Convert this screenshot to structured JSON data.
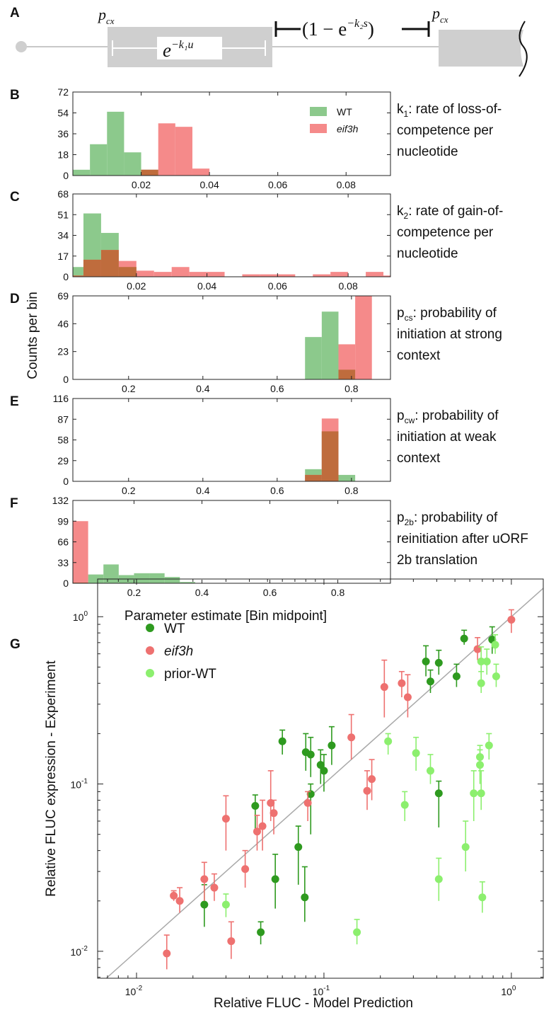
{
  "figure": {
    "panel_labels": [
      "A",
      "B",
      "C",
      "D",
      "E",
      "F",
      "G"
    ],
    "hist_ylabel": "Counts per bin",
    "hist_xlabel": "Parameter estimate [Bin midpoint]",
    "legend": {
      "wt": "WT",
      "eif3h": "eif3h"
    }
  },
  "schematic": {
    "pcx_left": "p",
    "pcx_left_sub": "cx",
    "pcx_right": "p",
    "pcx_right_sub": "cx",
    "decay_expr": "e",
    "decay_sup": "−k₁u",
    "gain_expr_prefix": "(1 − e",
    "gain_sup": "−k₂s",
    "gain_expr_suffix": ")"
  },
  "colors": {
    "wt": "#8cc98c",
    "eif3h": "#f58a8a",
    "overlap": "#bf6c3d",
    "g_wt": "#2e9a1f",
    "g_eif3h": "#ee7170",
    "g_prior": "#8cef6e",
    "box_gray": "#cfcfcf"
  },
  "chart_data": [
    {
      "panel": "B",
      "type": "bar",
      "description": [
        {
          "t": "k",
          "sub": "1",
          "rest": ": rate of loss-of-"
        },
        {
          "t": "competence per"
        },
        {
          "t": "nucleotide"
        }
      ],
      "xlim": [
        0.0,
        0.093
      ],
      "ylim": [
        0,
        72
      ],
      "xticks": [
        0.02,
        0.04,
        0.06,
        0.08
      ],
      "xtick_labels": [
        "0.02",
        "0.04",
        "0.06",
        "0.08"
      ],
      "yticks": [
        0,
        18,
        36,
        54,
        72
      ],
      "bin_width": 0.005,
      "series": [
        {
          "name": "WT",
          "bins": [
            [
              0.0025,
              5
            ],
            [
              0.0075,
              27
            ],
            [
              0.0125,
              55
            ],
            [
              0.0175,
              20
            ],
            [
              0.0225,
              5
            ]
          ]
        },
        {
          "name": "eif3h",
          "bins": [
            [
              0.0225,
              5
            ],
            [
              0.0275,
              45
            ],
            [
              0.0325,
              42
            ],
            [
              0.0375,
              6
            ]
          ]
        }
      ],
      "overlap_bins": [
        [
          0.0225,
          5
        ]
      ]
    },
    {
      "panel": "C",
      "type": "bar",
      "description": [
        {
          "t": "k",
          "sub": "2",
          "rest": ": rate of gain-of-"
        },
        {
          "t": "competence per"
        },
        {
          "t": "nucleotide"
        }
      ],
      "xlim": [
        0.002,
        0.092
      ],
      "ylim": [
        0,
        68
      ],
      "xticks": [
        0.02,
        0.04,
        0.06,
        0.08
      ],
      "xtick_labels": [
        "0.02",
        "0.04",
        "0.06",
        "0.08"
      ],
      "yticks": [
        0,
        17,
        34,
        51,
        68
      ],
      "bin_width": 0.005,
      "series": [
        {
          "name": "WT",
          "bins": [
            [
              0.0025,
              8
            ],
            [
              0.0075,
              52
            ],
            [
              0.0125,
              36
            ],
            [
              0.0175,
              8
            ]
          ]
        },
        {
          "name": "eif3h",
          "bins": [
            [
              0.0025,
              1
            ],
            [
              0.0075,
              14
            ],
            [
              0.0125,
              22
            ],
            [
              0.0175,
              13
            ],
            [
              0.0225,
              5
            ],
            [
              0.0275,
              4
            ],
            [
              0.0325,
              8
            ],
            [
              0.0375,
              4
            ],
            [
              0.0425,
              4
            ],
            [
              0.0525,
              2
            ],
            [
              0.0575,
              2
            ],
            [
              0.0625,
              2
            ],
            [
              0.0725,
              2
            ],
            [
              0.0775,
              4
            ],
            [
              0.0875,
              4
            ],
            [
              0.0925,
              1
            ]
          ]
        }
      ],
      "overlap_bins": [
        [
          0.0025,
          1
        ],
        [
          0.0075,
          14
        ],
        [
          0.0125,
          22
        ],
        [
          0.0175,
          8
        ]
      ]
    },
    {
      "panel": "D",
      "type": "bar",
      "description": [
        {
          "t": "p",
          "sub": "cs",
          "rest": ": probability of"
        },
        {
          "t": "initiation at strong"
        },
        {
          "t": "context"
        }
      ],
      "xlim": [
        0.05,
        0.905
      ],
      "ylim": [
        0,
        69
      ],
      "xticks": [
        0.2,
        0.4,
        0.6,
        0.8
      ],
      "xtick_labels": [
        "0.2",
        "0.4",
        "0.6",
        "0.8"
      ],
      "yticks": [
        0,
        23,
        46,
        69
      ],
      "bin_width": 0.045,
      "series": [
        {
          "name": "WT",
          "bins": [
            [
              0.6975,
              35
            ],
            [
              0.7425,
              56
            ],
            [
              0.7875,
              8
            ]
          ]
        },
        {
          "name": "eif3h",
          "bins": [
            [
              0.7875,
              29
            ],
            [
              0.8325,
              69
            ]
          ]
        }
      ],
      "overlap_bins": [
        [
          0.7875,
          8
        ]
      ]
    },
    {
      "panel": "E",
      "type": "bar",
      "description": [
        {
          "t": "p",
          "sub": "cw",
          "rest": ": probability of"
        },
        {
          "t": "initiation at weak"
        },
        {
          "t": "context"
        }
      ],
      "xlim": [
        0.05,
        0.905
      ],
      "ylim": [
        0,
        116
      ],
      "xticks": [
        0.2,
        0.4,
        0.6,
        0.8
      ],
      "xtick_labels": [
        "0.2",
        "0.4",
        "0.6",
        "0.8"
      ],
      "yticks": [
        0,
        29,
        58,
        87,
        116
      ],
      "bin_width": 0.045,
      "series": [
        {
          "name": "WT",
          "bins": [
            [
              0.6975,
              17
            ],
            [
              0.7425,
              70
            ],
            [
              0.7875,
              9
            ]
          ]
        },
        {
          "name": "eif3h",
          "bins": [
            [
              0.6975,
              9
            ],
            [
              0.7425,
              88
            ]
          ]
        }
      ],
      "overlap_bins": [
        [
          0.6975,
          9
        ],
        [
          0.7425,
          70
        ]
      ]
    },
    {
      "panel": "F",
      "type": "bar",
      "description": [
        {
          "t": "p",
          "sub": "2b",
          "rest": ": probability of"
        },
        {
          "t": "reinitiation after uORF"
        },
        {
          "t": "2b translation"
        }
      ],
      "xlim": [
        0.02,
        0.955
      ],
      "ylim": [
        0,
        132
      ],
      "xticks": [
        0.2,
        0.4,
        0.6,
        0.8
      ],
      "xtick_labels": [
        "0.2",
        "0.4",
        "0.6",
        "0.8"
      ],
      "yticks": [
        0,
        33,
        66,
        99,
        132
      ],
      "bin_width": 0.045,
      "series": [
        {
          "name": "WT",
          "bins": [
            [
              0.0425,
              1
            ],
            [
              0.0875,
              14
            ],
            [
              0.1325,
              30
            ],
            [
              0.1775,
              13
            ],
            [
              0.2225,
              16
            ],
            [
              0.2675,
              16
            ],
            [
              0.3125,
              10
            ],
            [
              0.3575,
              2
            ]
          ]
        },
        {
          "name": "eif3h",
          "bins": [
            [
              0.0425,
              99
            ]
          ]
        }
      ],
      "overlap_bins": [
        [
          0.0425,
          1
        ]
      ]
    },
    {
      "panel": "G",
      "type": "scatter",
      "xlabel": "Relative FLUC - Model Prediction",
      "ylabel": "Relative FLUC expression - Experiment",
      "xscale": "log",
      "yscale": "log",
      "xlim": [
        0.0062,
        1.48
      ],
      "ylim": [
        0.0069,
        1.68
      ],
      "xticks": [
        0.01,
        0.1,
        1
      ],
      "yticks": [
        0.01,
        0.1,
        1
      ],
      "tick_labels": [
        {
          "base": "10",
          "exp": "-2"
        },
        {
          "base": "10",
          "exp": "-1"
        },
        {
          "base": "10",
          "exp": "0"
        }
      ],
      "legend_placement": "top-left",
      "series": [
        {
          "name": "WT",
          "points": [
            [
              0.79,
              0.73,
              0.6,
              0.87
            ],
            [
              0.56,
              0.74,
              0.68,
              0.83
            ],
            [
              0.51,
              0.44,
              0.38,
              0.52
            ],
            [
              0.41,
              0.53,
              0.45,
              0.63
            ],
            [
              0.37,
              0.41,
              0.35,
              0.48
            ],
            [
              0.35,
              0.54,
              0.44,
              0.67
            ],
            [
              0.41,
              0.088,
              0.055,
              0.104
            ],
            [
              0.11,
              0.17,
              0.13,
              0.22
            ],
            [
              0.1,
              0.12,
              0.09,
              0.15
            ],
            [
              0.096,
              0.13,
              0.1,
              0.16
            ],
            [
              0.085,
              0.15,
              0.11,
              0.19
            ],
            [
              0.08,
              0.155,
              0.12,
              0.2
            ],
            [
              0.06,
              0.18,
              0.15,
              0.21
            ],
            [
              0.085,
              0.087,
              0.05,
              0.1
            ],
            [
              0.043,
              0.074,
              0.05,
              0.086
            ],
            [
              0.073,
              0.042,
              0.025,
              0.056
            ],
            [
              0.079,
              0.021,
              0.015,
              0.032
            ],
            [
              0.055,
              0.027,
              0.018,
              0.038
            ],
            [
              0.046,
              0.013,
              0.011,
              0.015
            ],
            [
              0.023,
              0.019,
              0.014,
              0.025
            ]
          ]
        },
        {
          "name": "eif3h",
          "points": [
            [
              1.0,
              0.96,
              0.8,
              1.1
            ],
            [
              0.66,
              0.64,
              0.55,
              0.75
            ],
            [
              0.28,
              0.33,
              0.25,
              0.45
            ],
            [
              0.26,
              0.4,
              0.33,
              0.47
            ],
            [
              0.21,
              0.38,
              0.25,
              0.55
            ],
            [
              0.14,
              0.19,
              0.14,
              0.26
            ],
            [
              0.18,
              0.107,
              0.08,
              0.14
            ],
            [
              0.17,
              0.091,
              0.07,
              0.12
            ],
            [
              0.082,
              0.077,
              0.06,
              0.09
            ],
            [
              0.052,
              0.077,
              0.06,
              0.12
            ],
            [
              0.054,
              0.067,
              0.05,
              0.08
            ],
            [
              0.047,
              0.056,
              0.04,
              0.08
            ],
            [
              0.044,
              0.052,
              0.04,
              0.065
            ],
            [
              0.03,
              0.062,
              0.04,
              0.085
            ],
            [
              0.038,
              0.031,
              0.024,
              0.04
            ],
            [
              0.026,
              0.024,
              0.02,
              0.029
            ],
            [
              0.023,
              0.027,
              0.02,
              0.034
            ],
            [
              0.032,
              0.0115,
              0.009,
              0.015
            ],
            [
              0.017,
              0.02,
              0.017,
              0.024
            ],
            [
              0.0158,
              0.0215,
              0.02,
              0.023
            ],
            [
              0.0145,
              0.0097,
              0.0078,
              0.0125
            ]
          ]
        },
        {
          "name": "prior-WT",
          "points": [
            [
              0.83,
              0.44,
              0.38,
              0.52
            ],
            [
              0.82,
              0.68,
              0.6,
              0.78
            ],
            [
              0.74,
              0.54,
              0.45,
              0.64
            ],
            [
              0.69,
              0.54,
              0.45,
              0.66
            ],
            [
              0.69,
              0.4,
              0.35,
              0.47
            ],
            [
              0.76,
              0.17,
              0.14,
              0.2
            ],
            [
              0.68,
              0.145,
              0.12,
              0.17
            ],
            [
              0.68,
              0.13,
              0.1,
              0.16
            ],
            [
              0.69,
              0.088,
              0.07,
              0.12
            ],
            [
              0.63,
              0.088,
              0.06,
              0.12
            ],
            [
              0.57,
              0.042,
              0.03,
              0.06
            ],
            [
              0.7,
              0.021,
              0.017,
              0.026
            ],
            [
              0.41,
              0.027,
              0.02,
              0.036
            ],
            [
              0.37,
              0.12,
              0.1,
              0.15
            ],
            [
              0.31,
              0.153,
              0.12,
              0.19
            ],
            [
              0.27,
              0.075,
              0.06,
              0.09
            ],
            [
              0.22,
              0.18,
              0.15,
              0.2
            ],
            [
              0.15,
              0.013,
              0.011,
              0.0155
            ],
            [
              0.03,
              0.019,
              0.016,
              0.022
            ]
          ]
        }
      ]
    }
  ]
}
